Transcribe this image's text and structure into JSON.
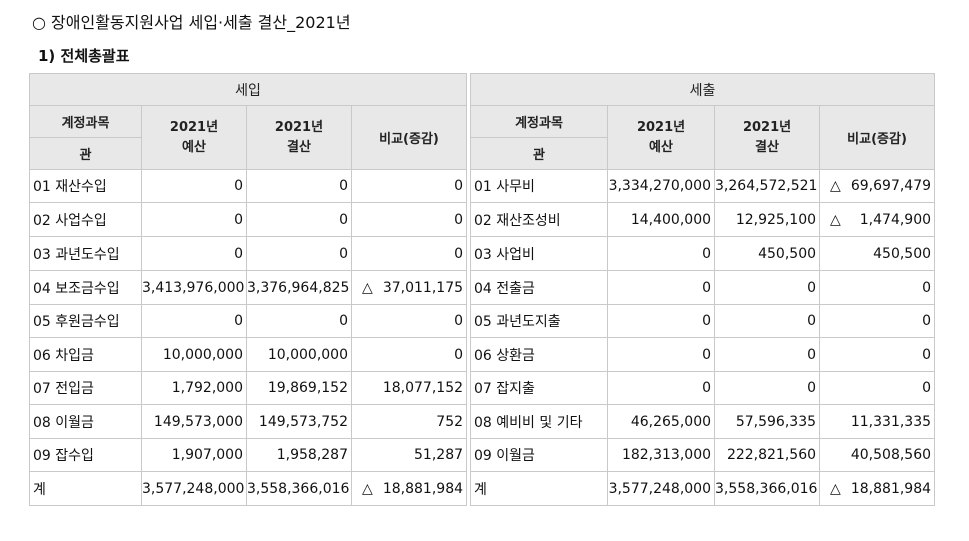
{
  "title": "○ 장애인활동지원사업 세입·세출 결산_2021년",
  "subtitle": "1) 전체총괄표",
  "income": {
    "section_label": "세입",
    "col_account": "계정과목",
    "col_gwan": "관",
    "col_budget": [
      "2021년",
      "예산"
    ],
    "col_settlement": [
      "2021년",
      "결산"
    ],
    "col_compare": "비교(증감)",
    "rows": [
      {
        "name": "01 재산수입",
        "budget": "0",
        "settlement": "0",
        "tri": "",
        "compare": "0"
      },
      {
        "name": "02 사업수입",
        "budget": "0",
        "settlement": "0",
        "tri": "",
        "compare": "0"
      },
      {
        "name": "03 과년도수입",
        "budget": "0",
        "settlement": "0",
        "tri": "",
        "compare": "0"
      },
      {
        "name": "04 보조금수입",
        "budget": "3,413,976,000",
        "settlement": "3,376,964,825",
        "tri": "△",
        "compare": "37,011,175"
      },
      {
        "name": "05 후원금수입",
        "budget": "0",
        "settlement": "0",
        "tri": "",
        "compare": "0"
      },
      {
        "name": "06 차입금",
        "budget": "10,000,000",
        "settlement": "10,000,000",
        "tri": "",
        "compare": "0"
      },
      {
        "name": "07 전입금",
        "budget": "1,792,000",
        "settlement": "19,869,152",
        "tri": "",
        "compare": "18,077,152"
      },
      {
        "name": "08 이월금",
        "budget": "149,573,000",
        "settlement": "149,573,752",
        "tri": "",
        "compare": "752"
      },
      {
        "name": "09 잡수입",
        "budget": "1,907,000",
        "settlement": "1,958,287",
        "tri": "",
        "compare": "51,287"
      },
      {
        "name": "계",
        "budget": "3,577,248,000",
        "settlement": "3,558,366,016",
        "tri": "△",
        "compare": "18,881,984"
      }
    ]
  },
  "expense": {
    "section_label": "세출",
    "col_account": "계정과목",
    "col_gwan": "관",
    "col_budget": [
      "2021년",
      "예산"
    ],
    "col_settlement": [
      "2021년",
      "결산"
    ],
    "col_compare": "비교(증감)",
    "rows": [
      {
        "name": "01 사무비",
        "budget": "3,334,270,000",
        "settlement": "3,264,572,521",
        "tri": "△",
        "compare": "69,697,479"
      },
      {
        "name": "02 재산조성비",
        "budget": "14,400,000",
        "settlement": "12,925,100",
        "tri": "△",
        "compare": "1,474,900"
      },
      {
        "name": "03 사업비",
        "budget": "0",
        "settlement": "450,500",
        "tri": "",
        "compare": "450,500"
      },
      {
        "name": "04 전출금",
        "budget": "0",
        "settlement": "0",
        "tri": "",
        "compare": "0"
      },
      {
        "name": "05 과년도지출",
        "budget": "0",
        "settlement": "0",
        "tri": "",
        "compare": "0"
      },
      {
        "name": "06 상환금",
        "budget": "0",
        "settlement": "0",
        "tri": "",
        "compare": "0"
      },
      {
        "name": "07 잡지출",
        "budget": "0",
        "settlement": "0",
        "tri": "",
        "compare": "0"
      },
      {
        "name": "08 예비비 및 기타",
        "budget": "46,265,000",
        "settlement": "57,596,335",
        "tri": "",
        "compare": "11,331,335"
      },
      {
        "name": "09 이월금",
        "budget": "182,313,000",
        "settlement": "222,821,560",
        "tri": "",
        "compare": "40,508,560"
      },
      {
        "name": "계",
        "budget": "3,577,248,000",
        "settlement": "3,558,366,016",
        "tri": "△",
        "compare": "18,881,984"
      }
    ]
  }
}
